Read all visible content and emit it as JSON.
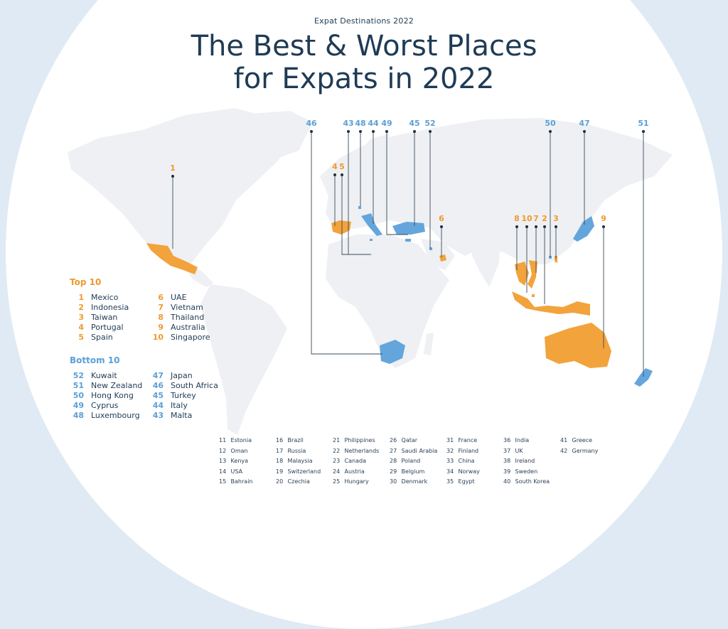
{
  "header": {
    "subtitle": "Expat Destinations 2022",
    "title_line1": "The Best & Worst Places",
    "title_line2": "for Expats in 2022"
  },
  "colors": {
    "top": "#f2a33c",
    "bottom": "#64a5dc",
    "land": "#eef0f3",
    "ocean": "#ffffff",
    "frame": "#dfeaf4"
  },
  "top10": {
    "heading": "Top 10",
    "items": [
      {
        "rank": "1",
        "country": "Mexico"
      },
      {
        "rank": "2",
        "country": "Indonesia"
      },
      {
        "rank": "3",
        "country": "Taiwan"
      },
      {
        "rank": "4",
        "country": "Portugal"
      },
      {
        "rank": "5",
        "country": "Spain"
      },
      {
        "rank": "6",
        "country": "UAE"
      },
      {
        "rank": "7",
        "country": "Vietnam"
      },
      {
        "rank": "8",
        "country": "Thailand"
      },
      {
        "rank": "9",
        "country": "Australia"
      },
      {
        "rank": "10",
        "country": "Singapore"
      }
    ]
  },
  "bottom10": {
    "heading": "Bottom 10",
    "items": [
      {
        "rank": "52",
        "country": "Kuwait"
      },
      {
        "rank": "51",
        "country": "New Zealand"
      },
      {
        "rank": "50",
        "country": "Hong Kong"
      },
      {
        "rank": "49",
        "country": "Cyprus"
      },
      {
        "rank": "48",
        "country": "Luxembourg"
      },
      {
        "rank": "47",
        "country": "Japan"
      },
      {
        "rank": "46",
        "country": "South Africa"
      },
      {
        "rank": "45",
        "country": "Turkey"
      },
      {
        "rank": "44",
        "country": "Italy"
      },
      {
        "rank": "43",
        "country": "Malta"
      }
    ]
  },
  "others": [
    {
      "rank": "11",
      "country": "Estonia"
    },
    {
      "rank": "12",
      "country": "Oman"
    },
    {
      "rank": "13",
      "country": "Kenya"
    },
    {
      "rank": "14",
      "country": "USA"
    },
    {
      "rank": "15",
      "country": "Bahrain"
    },
    {
      "rank": "16",
      "country": "Brazil"
    },
    {
      "rank": "17",
      "country": "Russia"
    },
    {
      "rank": "18",
      "country": "Malaysia"
    },
    {
      "rank": "19",
      "country": "Switzerland"
    },
    {
      "rank": "20",
      "country": "Czechia"
    },
    {
      "rank": "21",
      "country": "Philippines"
    },
    {
      "rank": "22",
      "country": "Netherlands"
    },
    {
      "rank": "23",
      "country": "Canada"
    },
    {
      "rank": "24",
      "country": "Austria"
    },
    {
      "rank": "25",
      "country": "Hungary"
    },
    {
      "rank": "26",
      "country": "Qatar"
    },
    {
      "rank": "27",
      "country": "Saudi Arabia"
    },
    {
      "rank": "28",
      "country": "Poland"
    },
    {
      "rank": "29",
      "country": "Belgium"
    },
    {
      "rank": "30",
      "country": "Denmark"
    },
    {
      "rank": "31",
      "country": "France"
    },
    {
      "rank": "32",
      "country": "Finland"
    },
    {
      "rank": "33",
      "country": "China"
    },
    {
      "rank": "34",
      "country": "Norway"
    },
    {
      "rank": "35",
      "country": "Egypt"
    },
    {
      "rank": "36",
      "country": "India"
    },
    {
      "rank": "37",
      "country": "UK"
    },
    {
      "rank": "38",
      "country": "Ireland"
    },
    {
      "rank": "39",
      "country": "Sweden"
    },
    {
      "rank": "40",
      "country": "South Korea"
    },
    {
      "rank": "41",
      "country": "Greece"
    },
    {
      "rank": "42",
      "country": "Germany"
    }
  ],
  "map_markers": [
    {
      "label": "1",
      "group": "top"
    },
    {
      "label": "4",
      "group": "top"
    },
    {
      "label": "5",
      "group": "top"
    },
    {
      "label": "6",
      "group": "top"
    },
    {
      "label": "8",
      "group": "top"
    },
    {
      "label": "10",
      "group": "top"
    },
    {
      "label": "7",
      "group": "top"
    },
    {
      "label": "2",
      "group": "top"
    },
    {
      "label": "3",
      "group": "top"
    },
    {
      "label": "9",
      "group": "top"
    },
    {
      "label": "46",
      "group": "bottom"
    },
    {
      "label": "43",
      "group": "bottom"
    },
    {
      "label": "48",
      "group": "bottom"
    },
    {
      "label": "44",
      "group": "bottom"
    },
    {
      "label": "49",
      "group": "bottom"
    },
    {
      "label": "45",
      "group": "bottom"
    },
    {
      "label": "52",
      "group": "bottom"
    },
    {
      "label": "50",
      "group": "bottom"
    },
    {
      "label": "47",
      "group": "bottom"
    },
    {
      "label": "51",
      "group": "bottom"
    }
  ]
}
